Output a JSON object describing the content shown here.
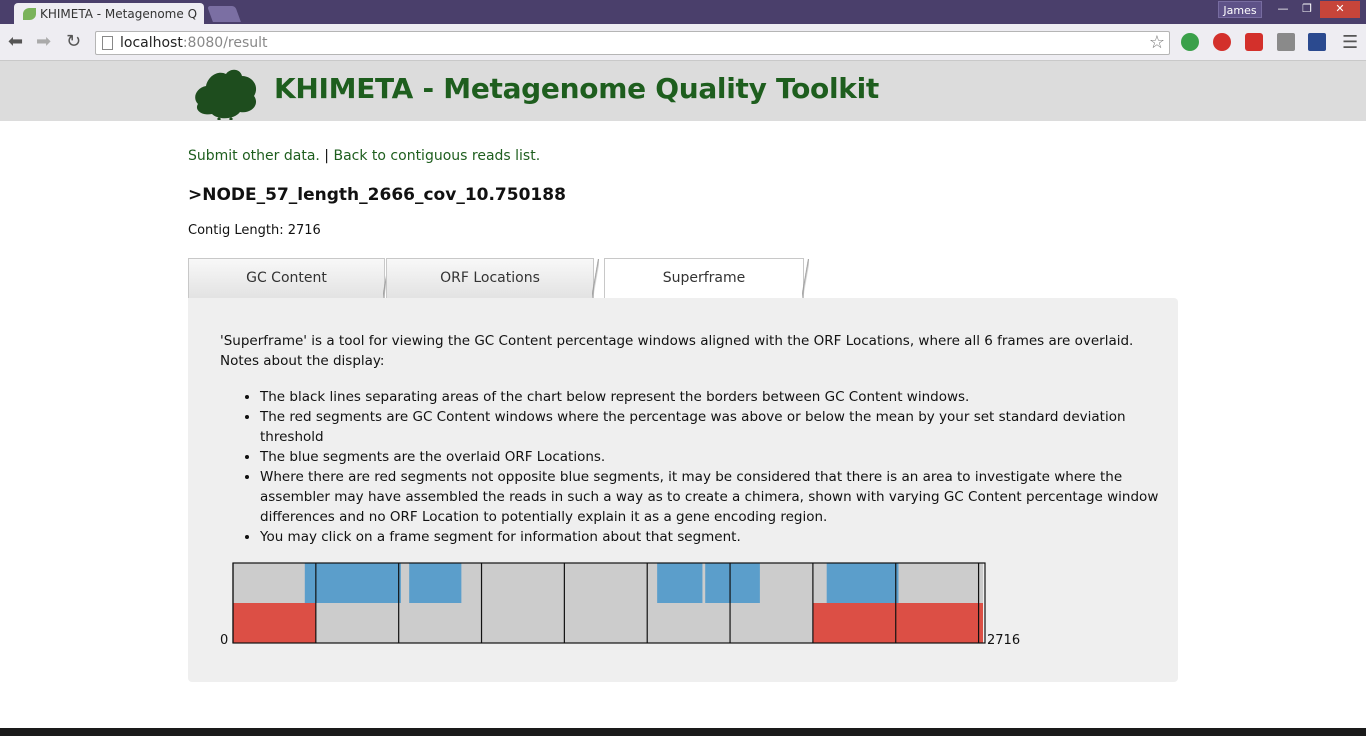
{
  "browser": {
    "tab_title": "KHIMETA - Metagenome Q",
    "user": "James",
    "url_host": "localhost",
    "url_rest": ":8080/result",
    "window_controls": [
      "—",
      "❐",
      "✕"
    ]
  },
  "header": {
    "title": "KHIMETA - Metagenome Quality Toolkit"
  },
  "links": {
    "submit": "Submit other data.",
    "separator": " | ",
    "back": "Back to contiguous reads list."
  },
  "contig": {
    "name": ">NODE_57_length_2666_cov_10.750188",
    "length_label": "Contig Length: 2716"
  },
  "tabs": [
    {
      "label": "GC Content",
      "active": false
    },
    {
      "label": "ORF Locations",
      "active": false
    },
    {
      "label": "Superframe",
      "active": true
    }
  ],
  "superframe": {
    "intro": "'Superframe' is a tool for viewing the GC Content percentage windows aligned with the ORF Locations, where all 6 frames are overlaid. Notes about the display:",
    "notes": [
      "The black lines separating areas of the chart below represent the borders between GC Content windows.",
      "The red segments are GC Content windows where the percentage was above or below the mean by your set standard deviation threshold",
      "The blue segments are the overlaid ORF Locations.",
      "Where there are red segments not opposite blue segments, it may be considered that there is an area to investigate where the assembler may have assembled the reads in such a way as to create a chimera, shown with varying GC Content percentage window differences and no ORF Location to potentially explain it as a gene encoding region.",
      "You may click on a frame segment for information about that segment."
    ],
    "start_label": "0",
    "end_label": "2716",
    "contig_length": 2716,
    "gc_windows": [
      {
        "start": 0,
        "end": 300,
        "flagged": true
      },
      {
        "start": 300,
        "end": 600,
        "flagged": false
      },
      {
        "start": 600,
        "end": 900,
        "flagged": false
      },
      {
        "start": 900,
        "end": 1200,
        "flagged": false
      },
      {
        "start": 1200,
        "end": 1500,
        "flagged": false
      },
      {
        "start": 1500,
        "end": 1800,
        "flagged": false
      },
      {
        "start": 1800,
        "end": 2100,
        "flagged": false
      },
      {
        "start": 2100,
        "end": 2400,
        "flagged": true
      },
      {
        "start": 2400,
        "end": 2700,
        "flagged": true
      },
      {
        "start": 2700,
        "end": 2716,
        "flagged": true
      }
    ],
    "orfs": [
      {
        "start": 260,
        "end": 608
      },
      {
        "start": 638,
        "end": 827
      },
      {
        "start": 1536,
        "end": 1700
      },
      {
        "start": 1710,
        "end": 1908
      },
      {
        "start": 2150,
        "end": 2410
      }
    ]
  },
  "colors": {
    "header_bg": "#dcdcdc",
    "title_green": "#1e5e1e",
    "flagged_red": "#dc4f45",
    "orf_blue": "#5b9ecb",
    "segment_gray": "#cccccc"
  }
}
